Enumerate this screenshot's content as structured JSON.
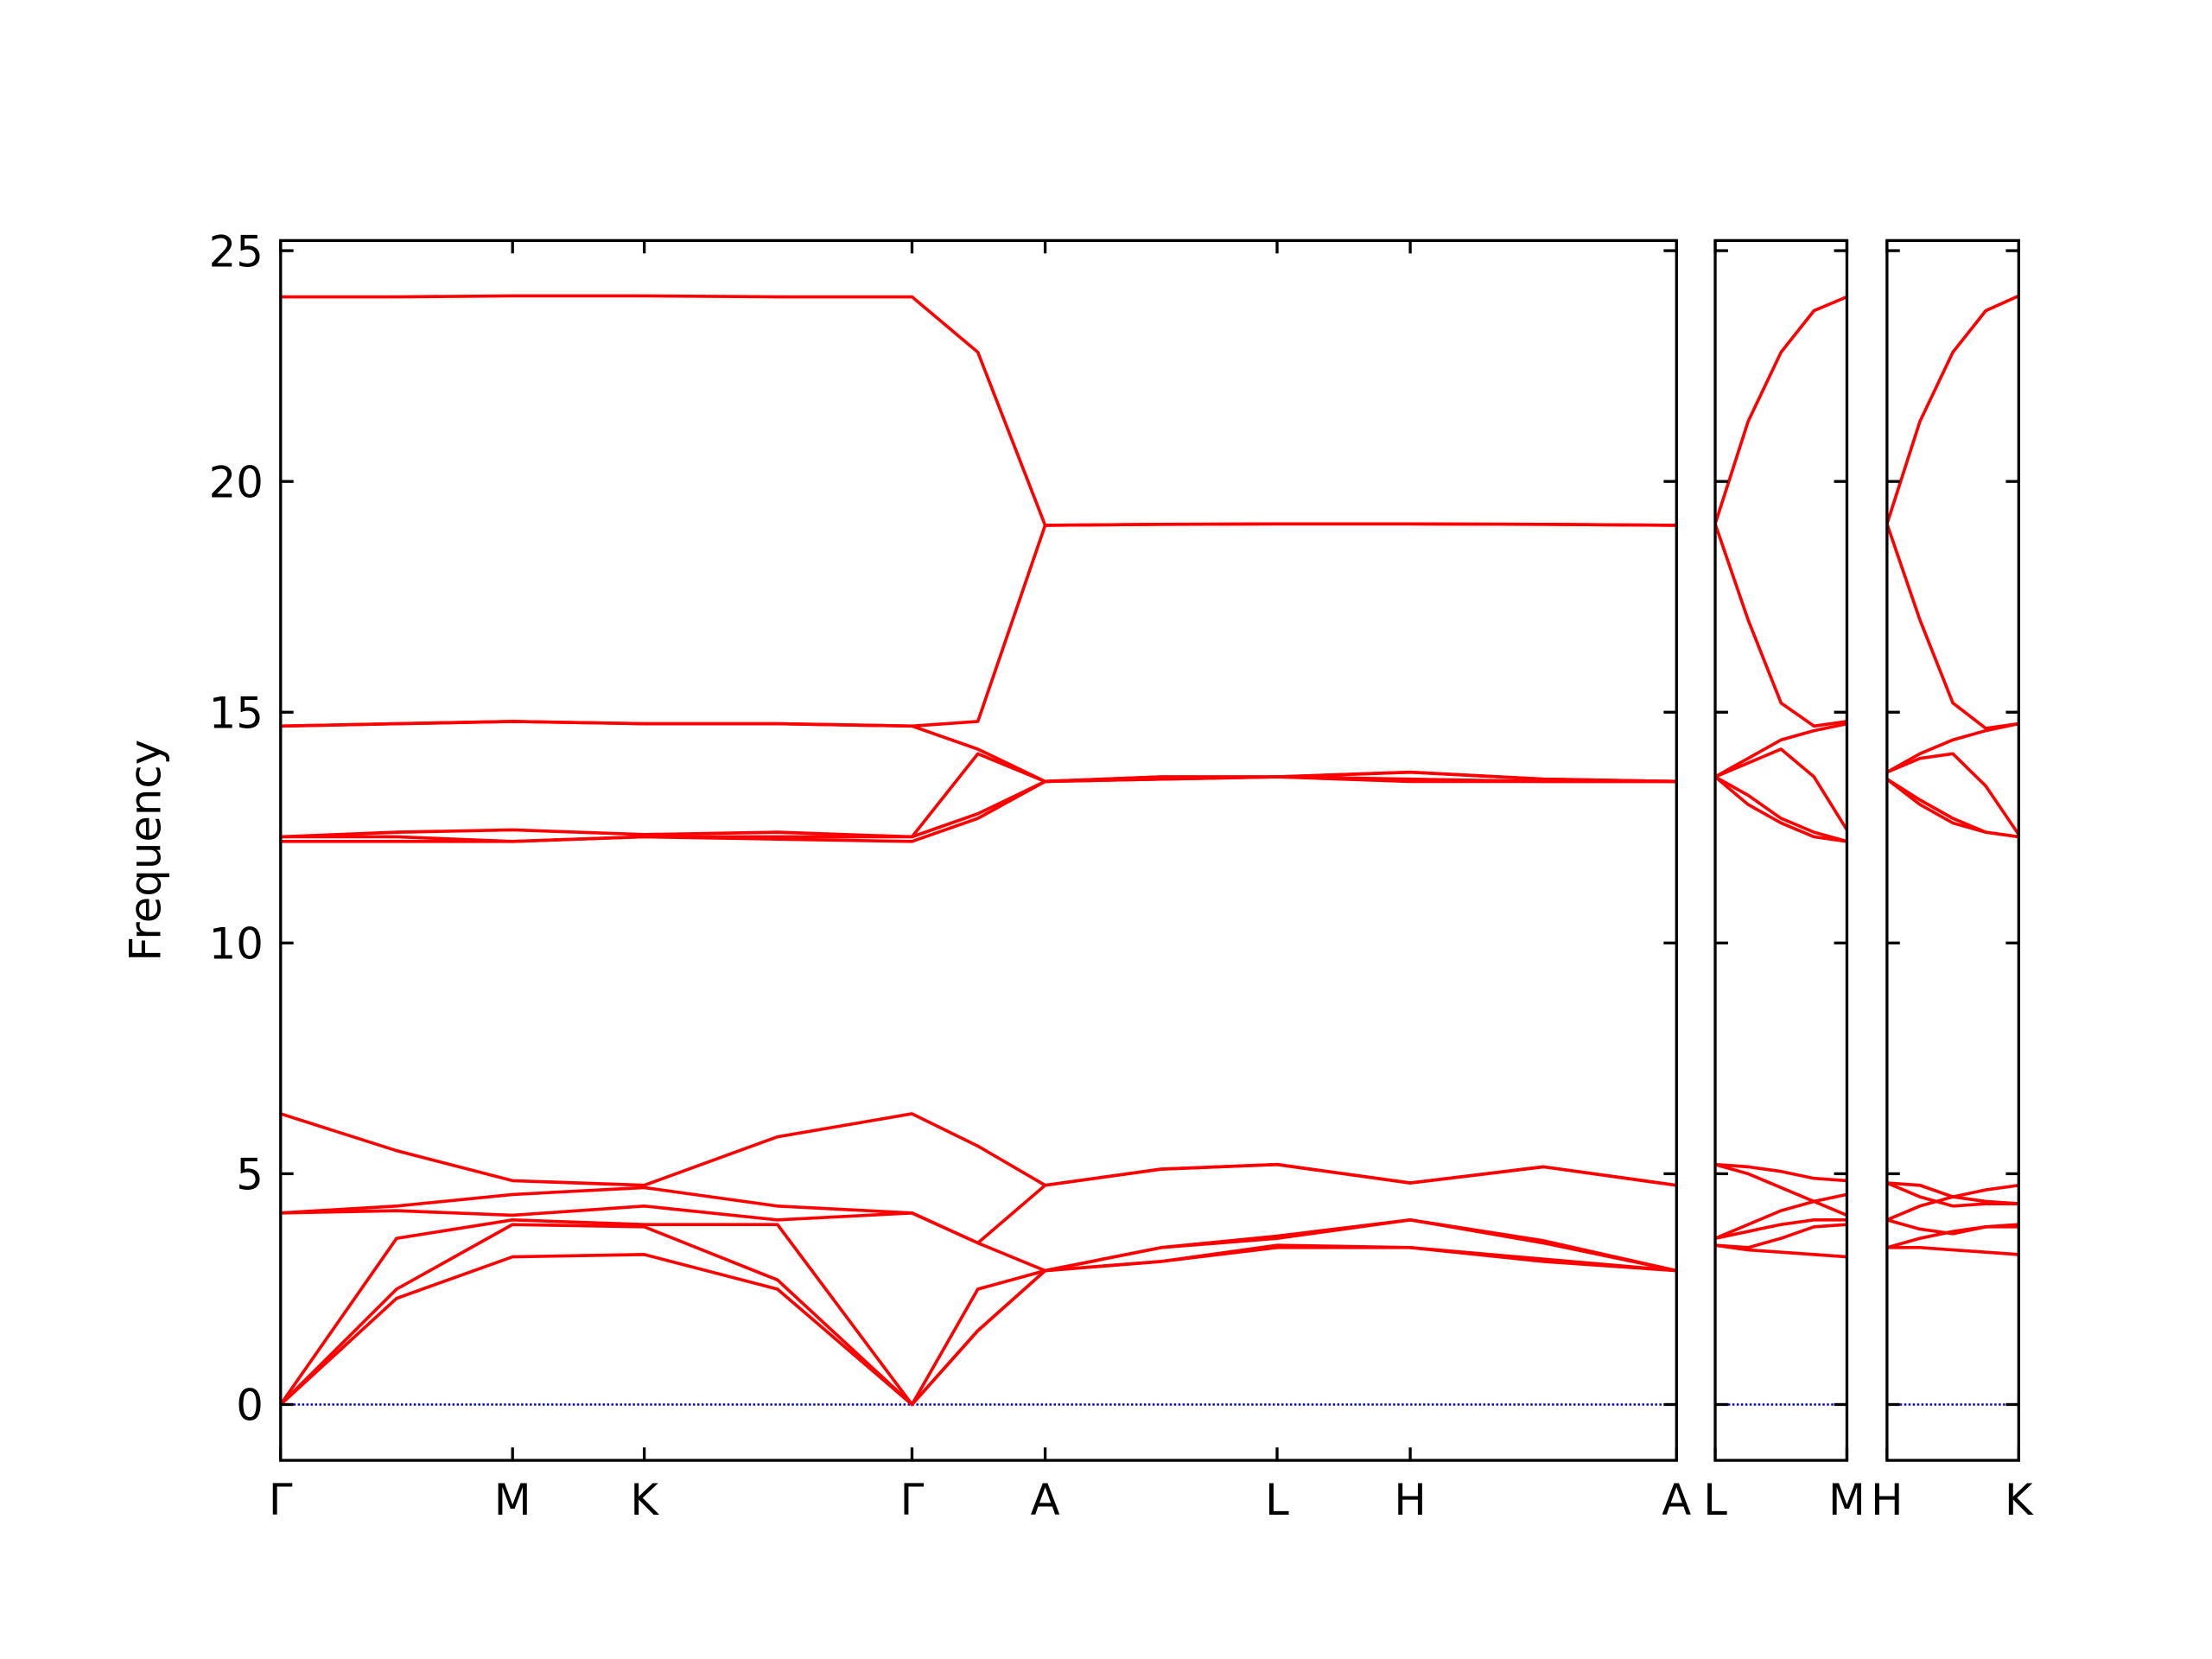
{
  "chart_data": [
    {
      "type": "line",
      "y_label": "Frequency",
      "color": "#ff0000",
      "hline": 0,
      "hline_color": "#0000cc",
      "show_ytick_labels": true,
      "x": [
        0,
        0.81,
        1.62,
        2.54,
        3.47,
        4.41,
        4.87,
        5.34,
        6.15,
        6.96,
        7.89,
        8.82,
        9.75
      ],
      "xlim": [
        0,
        9.75
      ],
      "ylim": [
        -1.21,
        25.22
      ],
      "xticks": [
        {
          "value": 0,
          "label": "Γ"
        },
        {
          "value": 1.62,
          "label": "M"
        },
        {
          "value": 2.54,
          "label": "K"
        },
        {
          "value": 4.41,
          "label": "Γ"
        },
        {
          "value": 5.34,
          "label": "A"
        },
        {
          "value": 6.96,
          "label": "L"
        },
        {
          "value": 7.89,
          "label": "H"
        },
        {
          "value": 9.75,
          "label": "A"
        }
      ],
      "yticks": [
        0,
        5,
        10,
        15,
        20,
        25
      ],
      "series": [
        {
          "values": [
            0,
            2.3,
            3.2,
            3.25,
            2.5,
            0,
            1.6,
            2.9,
            3.1,
            3.4,
            3.4,
            3.1,
            2.9
          ]
        },
        {
          "values": [
            0,
            2.5,
            3.9,
            3.85,
            2.7,
            0,
            1.6,
            2.9,
            3.1,
            3.45,
            3.4,
            3.15,
            2.9
          ]
        },
        {
          "values": [
            0,
            3.6,
            4.0,
            3.9,
            3.9,
            0,
            2.5,
            2.9,
            3.4,
            3.6,
            4.0,
            3.5,
            2.9
          ]
        },
        {
          "values": [
            4.15,
            4.2,
            4.1,
            4.3,
            4.0,
            4.15,
            3.5,
            2.9,
            3.4,
            3.65,
            4.0,
            3.55,
            2.9
          ]
        },
        {
          "values": [
            4.15,
            4.3,
            4.55,
            4.7,
            4.3,
            4.15,
            3.5,
            4.75,
            5.1,
            5.2,
            4.8,
            5.15,
            4.75
          ]
        },
        {
          "values": [
            6.3,
            5.5,
            4.85,
            4.75,
            5.8,
            6.3,
            5.6,
            4.75,
            5.1,
            5.2,
            4.8,
            5.15,
            4.75
          ]
        },
        {
          "values": [
            12.2,
            12.2,
            12.2,
            12.3,
            12.25,
            12.2,
            12.7,
            13.5,
            13.55,
            13.6,
            13.5,
            13.5,
            13.5
          ]
        },
        {
          "values": [
            12.3,
            12.3,
            12.2,
            12.3,
            12.3,
            12.3,
            12.8,
            13.5,
            13.55,
            13.6,
            13.55,
            13.5,
            13.5
          ]
        },
        {
          "values": [
            12.3,
            12.4,
            12.45,
            12.35,
            12.4,
            12.3,
            14.1,
            13.5,
            13.6,
            13.6,
            13.7,
            13.55,
            13.5
          ]
        },
        {
          "values": [
            14.7,
            14.75,
            14.8,
            14.75,
            14.75,
            14.7,
            14.2,
            13.5,
            13.6,
            13.6,
            13.7,
            13.55,
            13.5
          ]
        },
        {
          "values": [
            14.7,
            14.75,
            14.8,
            14.75,
            14.75,
            14.7,
            14.8,
            19.05,
            19.07,
            19.08,
            19.08,
            19.07,
            19.05
          ]
        },
        {
          "values": [
            24,
            24,
            24.02,
            24.02,
            24,
            24,
            22.8,
            19.05,
            19.07,
            19.08,
            19.08,
            19.07,
            19.05
          ]
        }
      ]
    },
    {
      "type": "line",
      "color": "#ff0000",
      "hline": 0,
      "hline_color": "#0000cc",
      "show_ytick_labels": false,
      "x": [
        0,
        0.23,
        0.46,
        0.69,
        0.92
      ],
      "xlim": [
        0,
        0.92
      ],
      "ylim": [
        -1.21,
        25.22
      ],
      "xticks": [
        {
          "value": 0,
          "label": "L"
        },
        {
          "value": 0.92,
          "label": "M"
        }
      ],
      "yticks": [
        0,
        5,
        10,
        15,
        20,
        25
      ],
      "series": [
        {
          "values": [
            3.45,
            3.35,
            3.3,
            3.25,
            3.2
          ]
        },
        {
          "values": [
            3.45,
            3.4,
            3.6,
            3.85,
            3.9
          ]
        },
        {
          "values": [
            3.6,
            3.75,
            3.9,
            4.0,
            4.0
          ]
        },
        {
          "values": [
            3.6,
            3.9,
            4.2,
            4.4,
            4.1
          ]
        },
        {
          "values": [
            5.2,
            5.0,
            4.7,
            4.4,
            4.55
          ]
        },
        {
          "values": [
            5.2,
            5.15,
            5.05,
            4.9,
            4.85
          ]
        },
        {
          "values": [
            13.6,
            13.0,
            12.6,
            12.3,
            12.2
          ]
        },
        {
          "values": [
            13.6,
            13.2,
            12.7,
            12.4,
            12.2
          ]
        },
        {
          "values": [
            13.6,
            13.9,
            14.2,
            13.6,
            12.45
          ]
        },
        {
          "values": [
            13.6,
            14.0,
            14.4,
            14.6,
            14.75
          ]
        },
        {
          "values": [
            19.08,
            17.0,
            15.2,
            14.7,
            14.8
          ]
        },
        {
          "values": [
            19.08,
            21.3,
            22.8,
            23.7,
            24.0
          ]
        }
      ]
    },
    {
      "type": "line",
      "color": "#ff0000",
      "hline": 0,
      "hline_color": "#0000cc",
      "show_ytick_labels": false,
      "x": [
        0,
        0.23,
        0.46,
        0.69,
        0.92
      ],
      "xlim": [
        0,
        0.92
      ],
      "ylim": [
        -1.21,
        25.22
      ],
      "xticks": [
        {
          "value": 0,
          "label": "H"
        },
        {
          "value": 0.92,
          "label": "K"
        }
      ],
      "yticks": [
        0,
        5,
        10,
        15,
        20,
        25
      ],
      "series": [
        {
          "values": [
            3.4,
            3.4,
            3.35,
            3.3,
            3.25
          ]
        },
        {
          "values": [
            3.4,
            3.6,
            3.75,
            3.85,
            3.85
          ]
        },
        {
          "values": [
            4.0,
            3.8,
            3.7,
            3.85,
            3.9
          ]
        },
        {
          "values": [
            4.0,
            4.3,
            4.5,
            4.4,
            4.35
          ]
        },
        {
          "values": [
            4.8,
            4.5,
            4.3,
            4.35,
            4.35
          ]
        },
        {
          "values": [
            4.8,
            4.75,
            4.5,
            4.65,
            4.75
          ]
        },
        {
          "values": [
            13.55,
            13.0,
            12.6,
            12.4,
            12.3
          ]
        },
        {
          "values": [
            13.55,
            13.1,
            12.7,
            12.4,
            12.3
          ]
        },
        {
          "values": [
            13.7,
            14.0,
            14.1,
            13.4,
            12.35
          ]
        },
        {
          "values": [
            13.7,
            14.1,
            14.4,
            14.6,
            14.75
          ]
        },
        {
          "values": [
            19.08,
            17.0,
            15.2,
            14.65,
            14.75
          ]
        },
        {
          "values": [
            19.08,
            21.3,
            22.8,
            23.7,
            24.02
          ]
        }
      ]
    }
  ]
}
